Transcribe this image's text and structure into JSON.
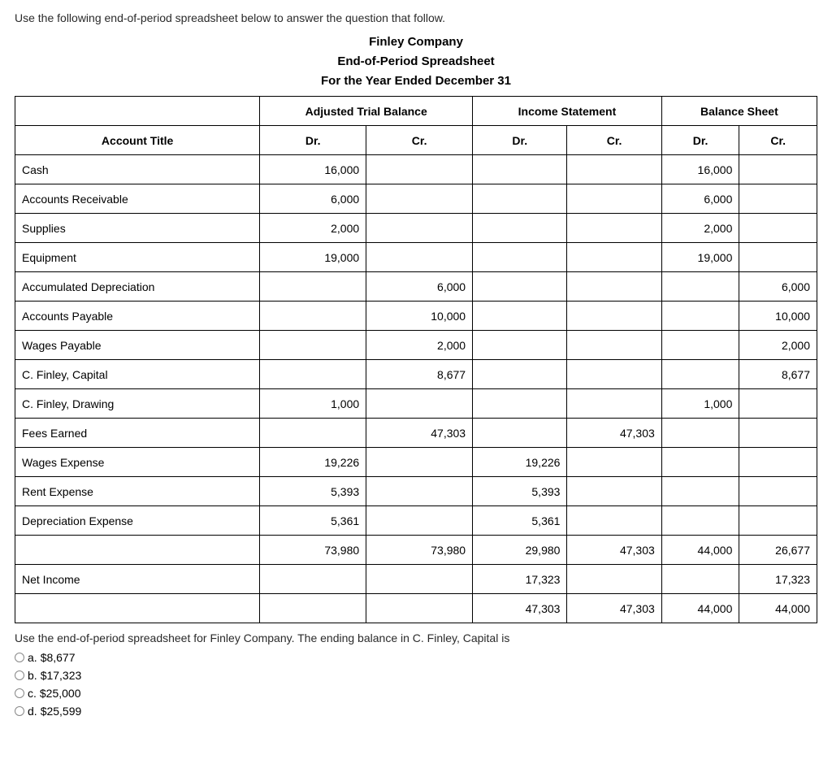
{
  "intro": "Use the following end-of-period spreadsheet below to answer the question that follow.",
  "header": {
    "company": "Finley Company",
    "title": "End-of-Period Spreadsheet",
    "period": "For the Year Ended December 31"
  },
  "columns": {
    "account_title": "Account Title",
    "sections": [
      {
        "label": "Adjusted Trial Balance",
        "dr": "Dr.",
        "cr": "Cr."
      },
      {
        "label": "Income Statement",
        "dr": "Dr.",
        "cr": "Cr."
      },
      {
        "label": "Balance Sheet",
        "dr": "Dr.",
        "cr": "Cr."
      }
    ]
  },
  "rows": [
    {
      "title": "Cash",
      "atb_dr": "16,000",
      "atb_cr": "",
      "is_dr": "",
      "is_cr": "",
      "bs_dr": "16,000",
      "bs_cr": ""
    },
    {
      "title": "Accounts Receivable",
      "atb_dr": "6,000",
      "atb_cr": "",
      "is_dr": "",
      "is_cr": "",
      "bs_dr": "6,000",
      "bs_cr": ""
    },
    {
      "title": "Supplies",
      "atb_dr": "2,000",
      "atb_cr": "",
      "is_dr": "",
      "is_cr": "",
      "bs_dr": "2,000",
      "bs_cr": ""
    },
    {
      "title": "Equipment",
      "atb_dr": "19,000",
      "atb_cr": "",
      "is_dr": "",
      "is_cr": "",
      "bs_dr": "19,000",
      "bs_cr": ""
    },
    {
      "title": "Accumulated Depreciation",
      "atb_dr": "",
      "atb_cr": "6,000",
      "is_dr": "",
      "is_cr": "",
      "bs_dr": "",
      "bs_cr": "6,000"
    },
    {
      "title": "Accounts Payable",
      "atb_dr": "",
      "atb_cr": "10,000",
      "is_dr": "",
      "is_cr": "",
      "bs_dr": "",
      "bs_cr": "10,000"
    },
    {
      "title": "Wages Payable",
      "atb_dr": "",
      "atb_cr": "2,000",
      "is_dr": "",
      "is_cr": "",
      "bs_dr": "",
      "bs_cr": "2,000"
    },
    {
      "title": "C. Finley, Capital",
      "atb_dr": "",
      "atb_cr": "8,677",
      "is_dr": "",
      "is_cr": "",
      "bs_dr": "",
      "bs_cr": "8,677"
    },
    {
      "title": "C. Finley, Drawing",
      "atb_dr": "1,000",
      "atb_cr": "",
      "is_dr": "",
      "is_cr": "",
      "bs_dr": "1,000",
      "bs_cr": ""
    },
    {
      "title": "Fees Earned",
      "atb_dr": "",
      "atb_cr": "47,303",
      "is_dr": "",
      "is_cr": "47,303",
      "bs_dr": "",
      "bs_cr": ""
    },
    {
      "title": "Wages Expense",
      "atb_dr": "19,226",
      "atb_cr": "",
      "is_dr": "19,226",
      "is_cr": "",
      "bs_dr": "",
      "bs_cr": ""
    },
    {
      "title": "Rent Expense",
      "atb_dr": "5,393",
      "atb_cr": "",
      "is_dr": "5,393",
      "is_cr": "",
      "bs_dr": "",
      "bs_cr": ""
    },
    {
      "title": "Depreciation Expense",
      "atb_dr": "5,361",
      "atb_cr": "",
      "is_dr": "5,361",
      "is_cr": "",
      "bs_dr": "",
      "bs_cr": ""
    },
    {
      "title": "",
      "atb_dr": "73,980",
      "atb_cr": "73,980",
      "is_dr": "29,980",
      "is_cr": "47,303",
      "bs_dr": "44,000",
      "bs_cr": "26,677"
    },
    {
      "title": "Net Income",
      "atb_dr": "",
      "atb_cr": "",
      "is_dr": "17,323",
      "is_cr": "",
      "bs_dr": "",
      "bs_cr": "17,323"
    },
    {
      "title": "",
      "atb_dr": "",
      "atb_cr": "",
      "is_dr": "47,303",
      "is_cr": "47,303",
      "bs_dr": "44,000",
      "bs_cr": "44,000"
    }
  ],
  "followup": "Use the end-of-period spreadsheet for Finley Company. The ending balance in C. Finley, Capital is",
  "options": [
    {
      "letter": "a.",
      "value": "$8,677"
    },
    {
      "letter": "b.",
      "value": "$17,323"
    },
    {
      "letter": "c.",
      "value": "$25,000"
    },
    {
      "letter": "d.",
      "value": "$25,599"
    }
  ]
}
